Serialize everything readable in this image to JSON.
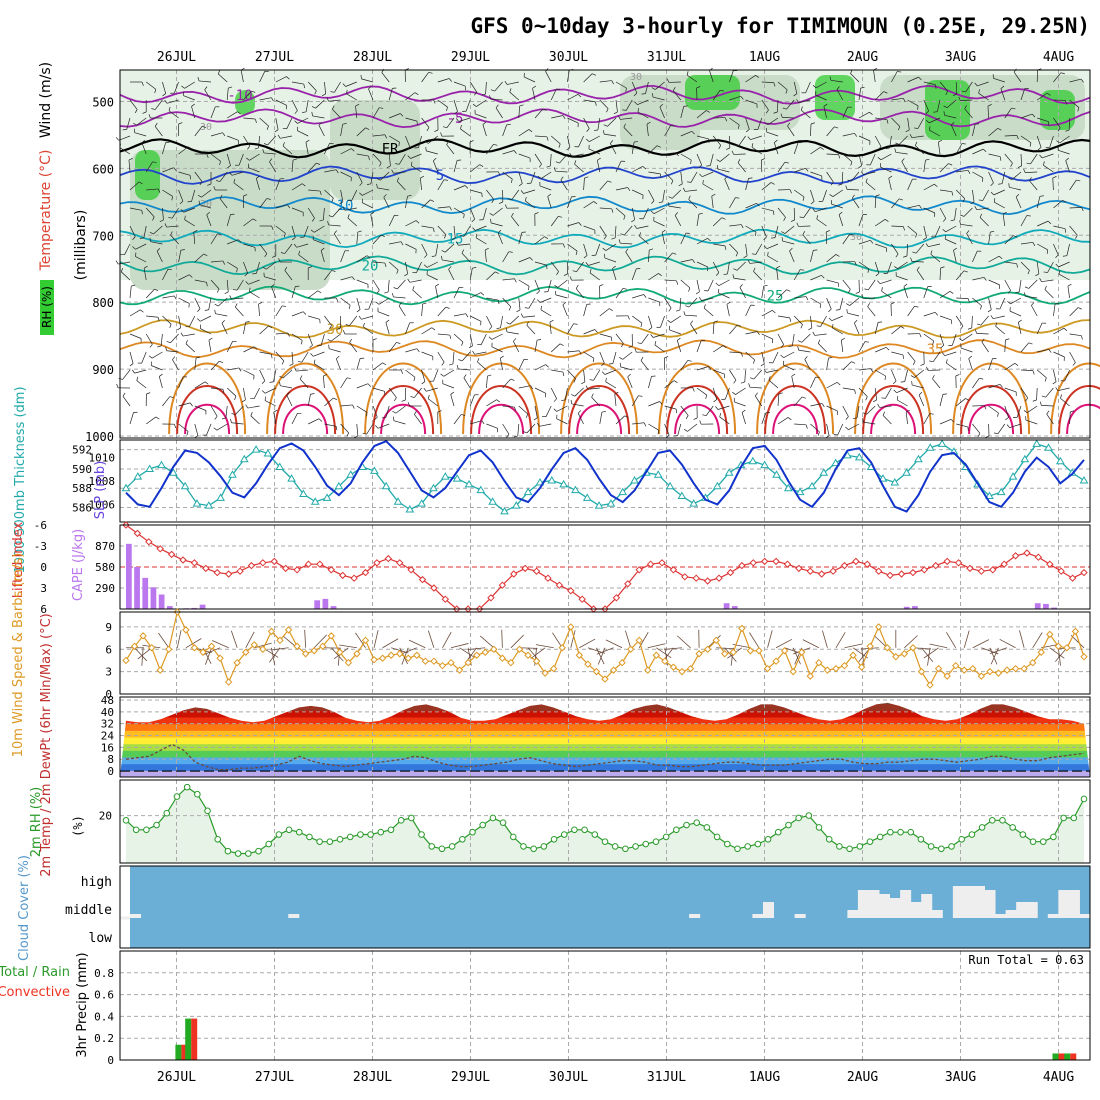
{
  "title": "GFS 0~10day 3-hourly for TIMIMOUN (0.25E, 29.25N)",
  "dates": [
    "26JUL",
    "27JUL",
    "28JUL",
    "29JUL",
    "30JUL",
    "31JUL",
    "1AUG",
    "2AUG",
    "3AUG",
    "4AUG"
  ],
  "colors": {
    "grid": "#aaaaaa",
    "frame": "#000000",
    "rh_green": "#33cc33",
    "rh_light": "#e6f2e6",
    "thickness": "#22aaaa",
    "slp": "#1133cc",
    "lifted": "#dd3333",
    "cape": "#bb77ee",
    "wind": "#dd9922",
    "cloud_bg": "#6baed6",
    "cloud_fill": "#eeeeee",
    "precip_green": "#22aa22",
    "precip_red": "#ee3322"
  },
  "chart_data": [
    {
      "type": "line",
      "panel": "upper-air",
      "ylabel": "(millibars)",
      "ylabels": [
        "Wind (m/s)",
        "Temperature (°C)",
        "RH (%)"
      ],
      "ylim": [
        1000,
        450
      ],
      "yticks": [
        500,
        600,
        700,
        800,
        900,
        1000
      ],
      "isotherms": [
        {
          "label": "-10",
          "pressure": 490,
          "color": "#9922aa"
        },
        {
          "label": "-5",
          "pressure": 525,
          "color": "#9922aa"
        },
        {
          "label": "FR",
          "pressure": 570,
          "color": "#000000"
        },
        {
          "label": "5",
          "pressure": 610,
          "color": "#2244cc"
        },
        {
          "label": "10",
          "pressure": 655,
          "color": "#1188cc"
        },
        {
          "label": "15",
          "pressure": 705,
          "color": "#11aabb"
        },
        {
          "label": "20",
          "pressure": 745,
          "color": "#11aa99"
        },
        {
          "label": "25",
          "pressure": 790,
          "color": "#11aa77"
        },
        {
          "label": "30",
          "pressure": 840,
          "color": "#cc9922"
        },
        {
          "label": "35",
          "pressure": 870,
          "color": "#dd8822"
        }
      ],
      "rh_labels": [
        "30",
        "30",
        "30",
        "30"
      ]
    },
    {
      "type": "line",
      "panel": "thickness-slp",
      "ylabel_left": "1000-500mb Thickness (dm)",
      "ylabel_right": "SLP (mb)",
      "thickness_ticks": [
        586,
        588,
        590,
        592
      ],
      "slp_ticks": [
        1006,
        1008,
        1010
      ],
      "series": [
        {
          "name": "1000-500mb Thickness (dm)",
          "values": [
            588.0,
            589.2,
            590.0,
            590.4,
            589.6,
            588.2,
            586.4,
            586.2,
            587.0,
            589.4,
            591.0,
            592.0,
            591.6,
            590.2,
            589.0,
            587.4,
            586.6,
            587.0,
            588.2,
            589.4,
            590.2,
            589.8,
            588.2,
            586.6,
            585.8,
            586.4,
            588.0,
            589.2,
            589.0,
            588.4,
            587.8,
            586.6,
            585.6,
            586.2,
            587.6,
            588.6,
            588.8,
            588.4,
            587.8,
            587.0,
            586.2,
            586.4,
            587.6,
            588.8,
            589.6,
            589.4,
            588.2,
            587.2,
            586.4,
            587.0,
            588.2,
            589.6,
            590.4,
            590.8,
            590.4,
            589.4,
            588.0,
            587.6,
            588.2,
            589.6,
            590.6,
            591.4,
            591.2,
            590.2,
            589.0,
            588.6,
            589.6,
            591.0,
            592.2,
            592.6,
            591.8,
            590.2,
            588.4,
            587.2,
            587.6,
            589.2,
            591.0,
            592.6,
            592.2,
            590.8,
            589.6,
            588.8
          ]
        },
        {
          "name": "SLP (mb)",
          "values": [
            1007.0,
            1006.0,
            1005.8,
            1007.4,
            1009.2,
            1010.6,
            1010.4,
            1009.6,
            1008.4,
            1007.0,
            1006.6,
            1007.8,
            1009.4,
            1010.8,
            1011.2,
            1010.6,
            1009.2,
            1007.6,
            1006.8,
            1007.8,
            1009.6,
            1011.0,
            1011.4,
            1010.4,
            1008.8,
            1007.2,
            1006.6,
            1007.4,
            1008.8,
            1010.2,
            1010.6,
            1009.6,
            1008.0,
            1006.6,
            1006.2,
            1007.4,
            1009.0,
            1010.4,
            1010.8,
            1009.8,
            1008.2,
            1006.8,
            1006.2,
            1007.2,
            1008.8,
            1010.4,
            1010.6,
            1009.4,
            1007.8,
            1006.4,
            1006.0,
            1007.2,
            1009.2,
            1010.8,
            1011.0,
            1009.8,
            1008.0,
            1006.4,
            1005.8,
            1007.0,
            1009.0,
            1010.6,
            1010.8,
            1009.6,
            1007.6,
            1005.8,
            1005.4,
            1006.8,
            1008.8,
            1010.2,
            1010.4,
            1009.4,
            1007.8,
            1006.2,
            1005.8,
            1007.0,
            1008.8,
            1010.0,
            1009.2,
            1007.8,
            1008.6,
            1009.8
          ]
        }
      ]
    },
    {
      "type": "bar",
      "panel": "stability",
      "ylabel_left": "Lifted Index",
      "ylabel_right": "CAPE (J/kg)",
      "li_ticks": [
        "-6",
        "-3",
        "0",
        "3",
        "6"
      ],
      "cape_ticks": [
        "290",
        "580",
        "870"
      ],
      "series": [
        {
          "name": "Lifted Index",
          "values": [
            -6.0,
            -4.8,
            -3.6,
            -2.6,
            -1.8,
            -1.0,
            -0.6,
            0.2,
            0.8,
            1.0,
            0.6,
            -0.2,
            -0.6,
            -0.8,
            0.2,
            0.4,
            -0.4,
            -0.4,
            0.4,
            1.2,
            1.6,
            0.8,
            -0.6,
            -1.2,
            -0.6,
            0.4,
            1.8,
            3.0,
            4.6,
            6.0,
            6.0,
            6.0,
            4.4,
            2.6,
            1.0,
            0.2,
            0.6,
            1.6,
            2.6,
            3.4,
            4.6,
            6.0,
            6.0,
            4.4,
            2.4,
            0.4,
            -0.4,
            -0.6,
            0.4,
            1.4,
            1.6,
            2.0,
            1.6,
            0.8,
            -0.2,
            -0.6,
            -0.8,
            -0.8,
            -0.4,
            0.2,
            0.6,
            1.0,
            0.6,
            -0.2,
            -0.8,
            -0.4,
            0.6,
            1.2,
            1.0,
            0.8,
            0.4,
            -0.2,
            -0.8,
            -0.6,
            0.2,
            0.6,
            0.4,
            -0.4,
            -1.6,
            -2.0,
            -1.4,
            -0.4,
            0.6,
            1.6,
            0.8
          ]
        },
        {
          "name": "CAPE (J/kg)",
          "values": [
            900,
            580,
            430,
            300,
            200,
            40,
            0,
            10,
            15,
            60,
            0,
            0,
            0,
            0,
            0,
            0,
            0,
            0,
            0,
            0,
            0,
            0,
            0,
            120,
            140,
            40,
            0,
            0,
            0,
            0,
            0,
            0,
            0,
            0,
            0,
            0,
            0,
            0,
            0,
            0,
            0,
            0,
            0,
            0,
            0,
            0,
            0,
            0,
            0,
            0,
            0,
            0,
            0,
            0,
            0,
            0,
            10,
            0,
            0,
            0,
            0,
            0,
            0,
            0,
            0,
            0,
            0,
            0,
            0,
            0,
            0,
            0,
            0,
            80,
            40,
            0,
            0,
            0,
            0,
            0,
            0,
            0,
            0,
            0,
            0,
            0,
            0,
            0,
            0,
            0,
            0,
            0,
            0,
            0,
            0,
            30,
            40,
            0,
            0,
            0,
            0,
            0,
            0,
            0,
            0,
            0,
            0,
            0,
            0,
            0,
            0,
            80,
            70,
            20,
            0,
            0,
            0
          ]
        }
      ]
    },
    {
      "type": "line",
      "panel": "wind10m",
      "ylabel": "10m Wind Speed & Barbs (m/s)",
      "yticks": [
        0,
        3,
        6,
        9
      ],
      "ylim": [
        0,
        11
      ],
      "series": [
        {
          "name": "10m Wind Speed (m/s)",
          "values": [
            4.5,
            6.4,
            7.8,
            6.2,
            3.2,
            6.0,
            11.0,
            8.6,
            6.2,
            5.6,
            6.4,
            4.8,
            1.6,
            4.2,
            5.6,
            6.6,
            6.0,
            8.4,
            7.2,
            8.6,
            6.4,
            5.4,
            5.8,
            6.4,
            7.8,
            5.6,
            4.2,
            5.4,
            7.2,
            4.6,
            4.8,
            5.2,
            5.4,
            4.8,
            5.2,
            4.4,
            4.4,
            3.8,
            4.2,
            3.2,
            4.2,
            5.2,
            5.6,
            6.0,
            4.8,
            4.2,
            6.0,
            5.2,
            4.4,
            2.8,
            3.4,
            6.2,
            9.0,
            5.2,
            4.0,
            3.0,
            2.0,
            3.2,
            4.2,
            6.0,
            7.2,
            3.2,
            5.2,
            4.4,
            3.6,
            3.0,
            3.4,
            5.4,
            6.0,
            7.2,
            5.4,
            5.6,
            8.8,
            5.8,
            5.8,
            3.4,
            4.4,
            5.8,
            3.0,
            5.6,
            2.4,
            4.2,
            3.2,
            3.4,
            3.8,
            5.2,
            3.6,
            6.4,
            9.0,
            6.2,
            5.0,
            5.4,
            6.2,
            3.0,
            1.2,
            3.4,
            2.4,
            3.8,
            3.2,
            3.4,
            2.4,
            3.0,
            2.8,
            3.2,
            3.4,
            3.4,
            4.2,
            5.6,
            8.0,
            6.4,
            6.2,
            8.4,
            5.0
          ]
        }
      ]
    },
    {
      "type": "area",
      "panel": "temp2m",
      "ylabel": "2m Temp / 2m DewPt (6hr Min/Max) (°C)",
      "yticks": [
        0,
        8,
        16,
        24,
        32,
        40,
        48
      ],
      "ylim": [
        -4,
        50
      ],
      "color_bands": [
        "#bbaaee",
        "#3377dd",
        "#55aaee",
        "#55cc55",
        "#aadd44",
        "#ffee33",
        "#ffbb22",
        "#ff7711",
        "#ee3311",
        "#cc1100",
        "#993322",
        "#774433"
      ],
      "series": [
        {
          "name": "2m Temp (°C)",
          "values": [
            34,
            33,
            33,
            35,
            38,
            41,
            43,
            42,
            39,
            36,
            34,
            33,
            34,
            37,
            40,
            43,
            44,
            43,
            40,
            36,
            34,
            33,
            34,
            37,
            41,
            44,
            45,
            43,
            40,
            36,
            34,
            34,
            35,
            38,
            41,
            44,
            45,
            43,
            40,
            37,
            35,
            34,
            35,
            38,
            42,
            44,
            45,
            43,
            40,
            37,
            35,
            34,
            35,
            38,
            42,
            45,
            45,
            43,
            40,
            37,
            35,
            34,
            35,
            38,
            42,
            45,
            46,
            44,
            41,
            37,
            35,
            34,
            35,
            38,
            42,
            45,
            45,
            43,
            40,
            37,
            35,
            35,
            34,
            32
          ]
        },
        {
          "name": "2m DewPt (°C)",
          "values": [
            8,
            9,
            10,
            14,
            18,
            14,
            6,
            3,
            1,
            1,
            2,
            2,
            3,
            4,
            6,
            10,
            7,
            5,
            4,
            3,
            4,
            5,
            6,
            7,
            8,
            10,
            9,
            6,
            4,
            3,
            3,
            4,
            5,
            6,
            8,
            9,
            7,
            5,
            4,
            3,
            4,
            5,
            6,
            7,
            7,
            6,
            4,
            4,
            3,
            3,
            4,
            5,
            6,
            6,
            5,
            4,
            4,
            4,
            5,
            6,
            7,
            8,
            8,
            6,
            5,
            5,
            6,
            6,
            7,
            8,
            8,
            7,
            6,
            7,
            8,
            10,
            10,
            8,
            7,
            7,
            9,
            10,
            11,
            12
          ]
        }
      ]
    },
    {
      "type": "line",
      "panel": "rh2m",
      "ylabel": "2m RH (%)",
      "yticks": [
        20
      ],
      "ylim": [
        0,
        35
      ],
      "series": [
        {
          "name": "2m RH (%)",
          "values": [
            18,
            14,
            14,
            16,
            21,
            28,
            32,
            29,
            22,
            10,
            5,
            4,
            4,
            5,
            8,
            12,
            14,
            13,
            11,
            9,
            9,
            10,
            11,
            12,
            12,
            13,
            14,
            18,
            19,
            12,
            7,
            6,
            7,
            10,
            13,
            16,
            19,
            17,
            11,
            7,
            6,
            7,
            10,
            12,
            14,
            14,
            12,
            9,
            7,
            6,
            7,
            8,
            9,
            11,
            14,
            16,
            17,
            15,
            11,
            8,
            6,
            7,
            8,
            10,
            13,
            16,
            19,
            20,
            15,
            10,
            7,
            6,
            7,
            9,
            11,
            13,
            13,
            13,
            10,
            7,
            6,
            7,
            10,
            12,
            15,
            18,
            18,
            15,
            12,
            9,
            9,
            11,
            19,
            19,
            27
          ]
        }
      ]
    },
    {
      "type": "bar",
      "panel": "cloud",
      "ylabel": "Cloud Cover (%)",
      "levels": [
        "high",
        "middle",
        "low"
      ],
      "series": [
        {
          "name": "middle",
          "values": [
            0.05,
            0,
            0,
            0,
            0,
            0,
            0,
            0,
            0,
            0,
            0,
            0,
            0,
            0,
            0,
            0.05,
            0,
            0,
            0,
            0,
            0,
            0,
            0,
            0,
            0,
            0,
            0,
            0,
            0,
            0,
            0,
            0,
            0,
            0,
            0,
            0,
            0,
            0,
            0,
            0,
            0,
            0,
            0,
            0,
            0,
            0,
            0,
            0,
            0,
            0,
            0,
            0,
            0,
            0.05,
            0,
            0,
            0,
            0,
            0,
            0.05,
            0.2,
            0,
            0,
            0.05,
            0,
            0,
            0,
            0,
            0.1,
            0.35,
            0.35,
            0.3,
            0.25,
            0.35,
            0.2,
            0.3,
            0.1,
            0,
            0.4,
            0.4,
            0.4,
            0.35,
            0.05,
            0.1,
            0.2,
            0.2,
            0,
            0.05,
            0.35,
            0.35,
            0.05
          ]
        }
      ]
    },
    {
      "type": "bar",
      "panel": "precip",
      "ylabel": "3hr Precip (mm)",
      "legend": [
        "Total / Rain",
        "Convective"
      ],
      "yticks": [
        0,
        0.2,
        0.4,
        0.6,
        0.8
      ],
      "ylim": [
        0,
        1.0
      ],
      "run_total_label": "Run Total = 0.63",
      "bars": [
        {
          "day": 0.05,
          "value": 0.14
        },
        {
          "day": 0.15,
          "value": 0.38
        },
        {
          "day": 9.0,
          "value": 0.06
        },
        {
          "day": 9.12,
          "value": 0.06
        }
      ]
    }
  ]
}
